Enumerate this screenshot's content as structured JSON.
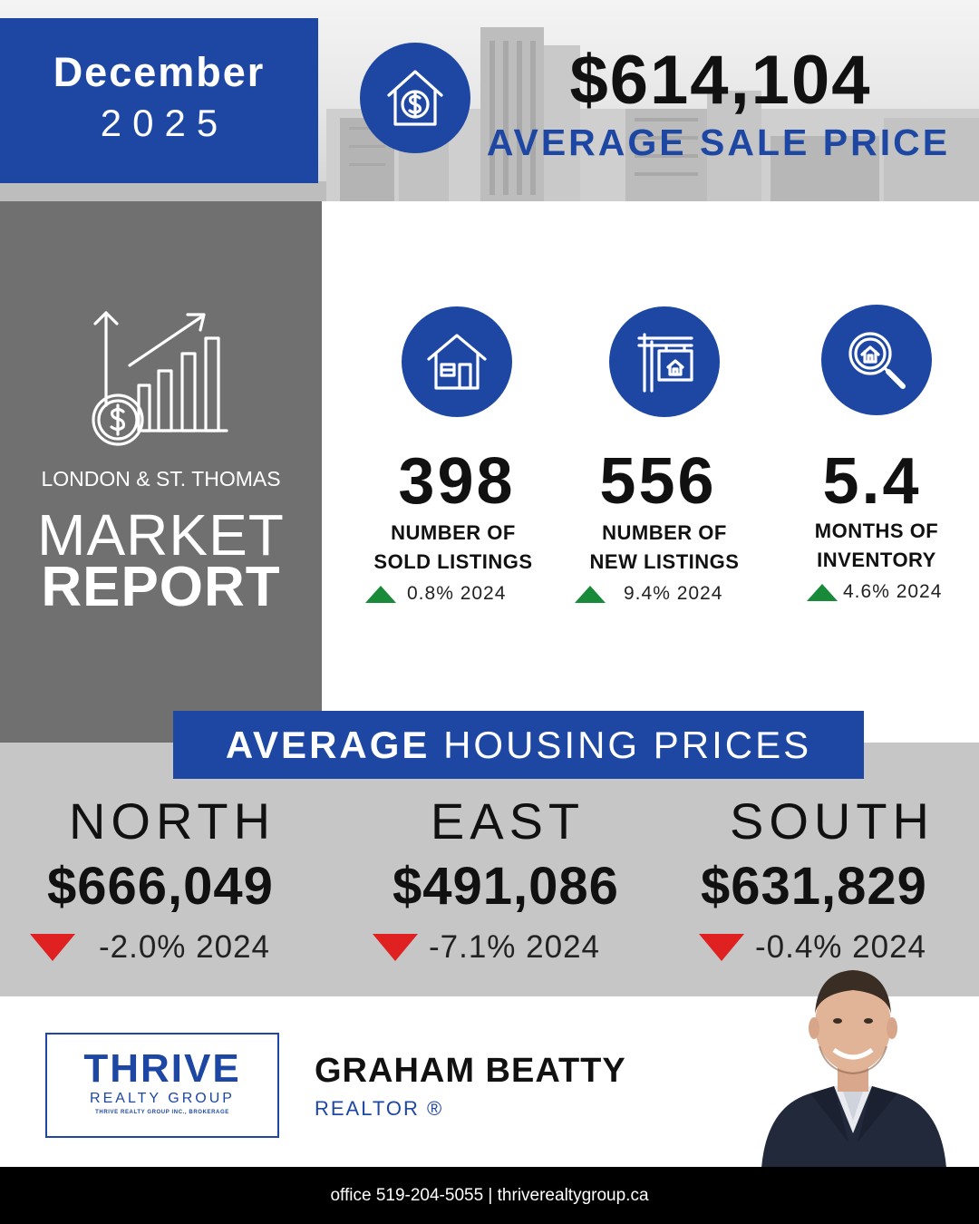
{
  "header": {
    "month": "December",
    "year": "2025",
    "average_sale_price": "$614,104",
    "average_sale_price_label": "AVERAGE SALE PRICE",
    "price_icon": "house-dollar-icon"
  },
  "market_panel": {
    "icon": "growth-chart-dollar-icon",
    "region": "LONDON & ST. THOMAS",
    "market": "MARKET",
    "report": "REPORT"
  },
  "stats": [
    {
      "icon": "house-icon",
      "value": "398",
      "label_line1": "NUMBER OF",
      "label_line2": "SOLD LISTINGS",
      "change": "0.8% 2024",
      "direction": "up"
    },
    {
      "icon": "for-sale-sign-icon",
      "value": "556",
      "label_line1": "NUMBER OF",
      "label_line2": "NEW LISTINGS",
      "change": "9.4% 2024",
      "direction": "up"
    },
    {
      "icon": "house-search-icon",
      "value": "5.4",
      "label_line1": "MONTHS OF",
      "label_line2": "INVENTORY",
      "change": "4.6% 2024",
      "direction": "up"
    }
  ],
  "housing": {
    "title_bold": "AVERAGE",
    "title_rest": " HOUSING PRICES",
    "regions": [
      {
        "name": "NORTH",
        "price": "$666,049",
        "change": "-2.0% 2024",
        "direction": "down"
      },
      {
        "name": "EAST",
        "price": "$491,086",
        "change": "-7.1% 2024",
        "direction": "down"
      },
      {
        "name": "SOUTH",
        "price": "$631,829",
        "change": "-0.4% 2024",
        "direction": "down"
      }
    ]
  },
  "brand": {
    "name": "THRIVE",
    "sub": "REALTY GROUP",
    "legal": "THRIVE REALTY GROUP INC., BROKERAGE"
  },
  "agent": {
    "name": "GRAHAM BEATTY",
    "title": "REALTOR ®"
  },
  "footer": {
    "contact": "office 519-204-5055 | thriverealtygroup.ca"
  },
  "colors": {
    "brand_blue": "#1d47a3",
    "panel_grey": "#707070",
    "band_grey": "#c6c6c6",
    "up_green": "#198a3a",
    "down_red": "#e02121"
  }
}
